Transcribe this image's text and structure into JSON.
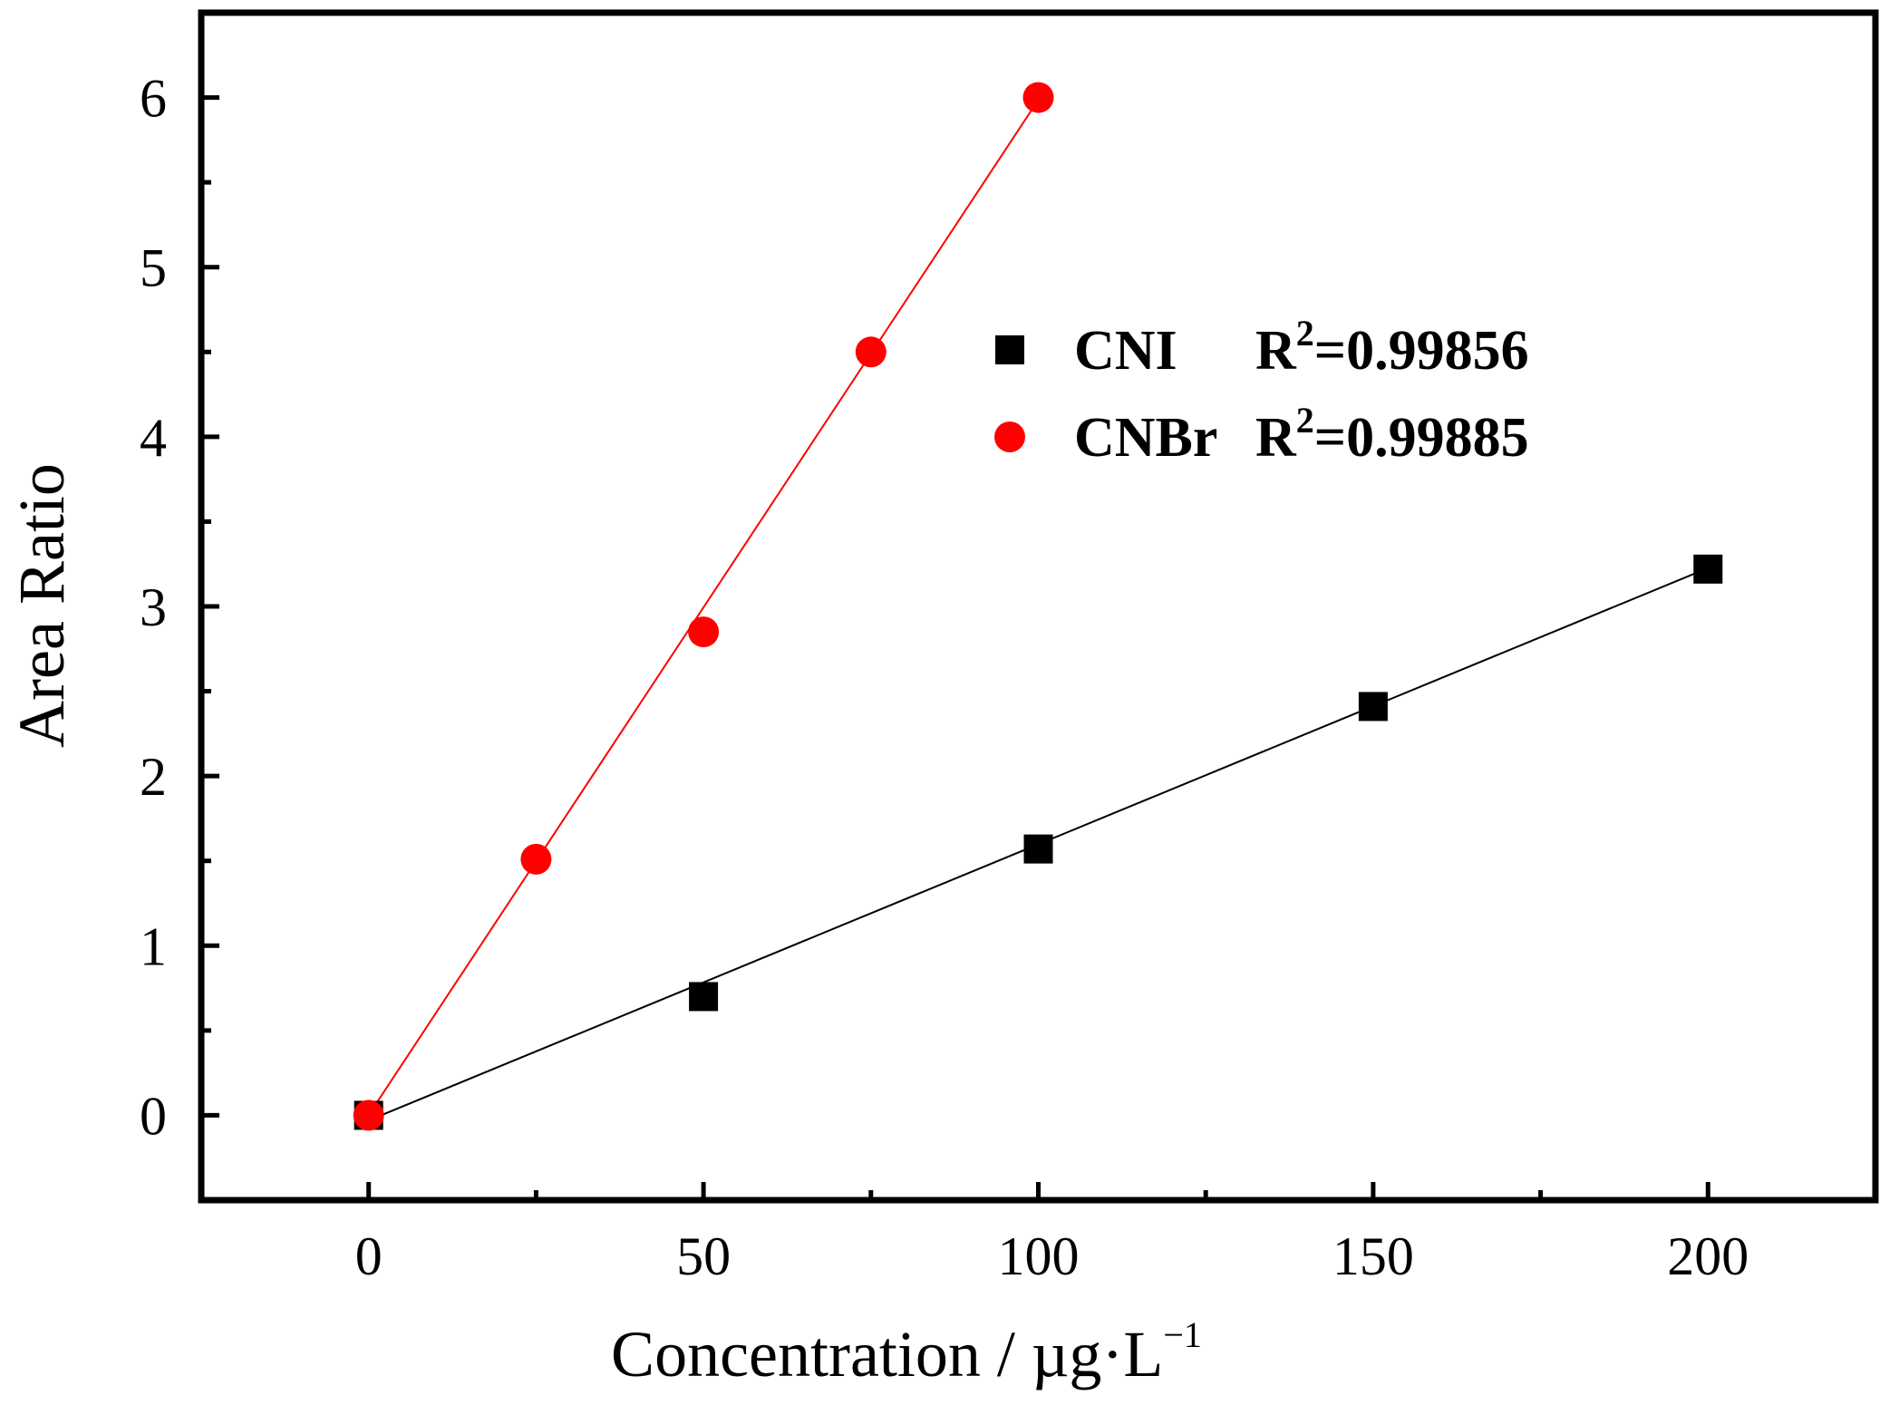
{
  "chart_data": {
    "type": "scatter",
    "xlabel": "Concentration / µg·L",
    "xlabel_superscript": "−1",
    "ylabel": "Area Ratio",
    "xlim": [
      -25,
      225
    ],
    "ylim": [
      -0.5,
      6.5
    ],
    "xticks": [
      "0",
      "50",
      "100",
      "150",
      "200"
    ],
    "yticks": [
      "0",
      "1",
      "2",
      "3",
      "4",
      "5",
      "6"
    ],
    "grid": false,
    "legend_position": "top-right",
    "series": [
      {
        "name": "CNI",
        "r2_prefix": "R",
        "r2_exp": "2",
        "r2_value": "=0.99856",
        "marker": "square",
        "color": "#000000",
        "x": [
          0,
          50,
          100,
          150,
          200
        ],
        "y": [
          0.0,
          0.7,
          1.57,
          2.41,
          3.22
        ],
        "fit": {
          "slope": 0.01628,
          "intercept": -0.03,
          "x_range": [
            0,
            200
          ]
        }
      },
      {
        "name": "CNBr",
        "r2_prefix": "R",
        "r2_exp": "2",
        "r2_value": "=0.99885",
        "marker": "circle",
        "color": "#ff0000",
        "x": [
          0,
          25,
          50,
          75,
          100
        ],
        "y": [
          0.0,
          1.51,
          2.85,
          4.5,
          6.0
        ],
        "fit": {
          "slope": 0.05984,
          "intercept": 0.002,
          "x_range": [
            0,
            100
          ]
        }
      }
    ]
  }
}
